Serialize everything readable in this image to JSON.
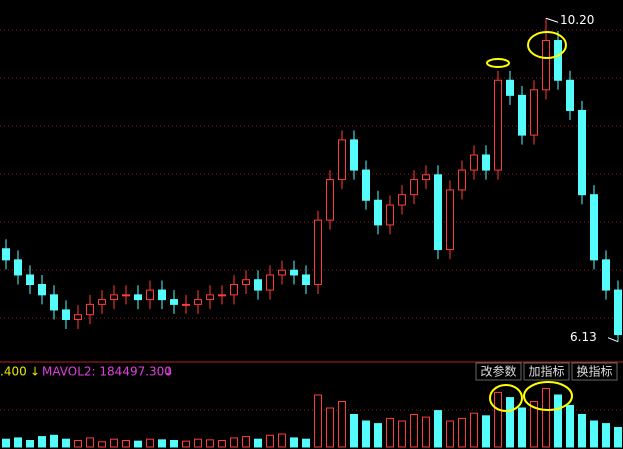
{
  "chart_data": {
    "type": "candlestick",
    "open": [
      7.3,
      7.16,
      6.97,
      6.85,
      6.72,
      6.53,
      6.41,
      6.47,
      6.6,
      6.66,
      6.72,
      6.72,
      6.66,
      6.78,
      6.66,
      6.6,
      6.6,
      6.66,
      6.72,
      6.72,
      6.85,
      6.91,
      6.78,
      6.97,
      7.03,
      6.97,
      6.85,
      7.66,
      8.17,
      8.67,
      8.29,
      7.91,
      7.6,
      7.85,
      7.98,
      8.17,
      8.23,
      7.29,
      8.04,
      8.29,
      8.48,
      8.29,
      9.42,
      9.23,
      8.73,
      9.3,
      9.92,
      9.42,
      9.04,
      7.98,
      7.16,
      6.78
    ],
    "high": [
      7.42,
      7.28,
      7.09,
      6.97,
      6.84,
      6.65,
      6.59,
      6.72,
      6.78,
      6.84,
      6.84,
      6.84,
      6.9,
      6.9,
      6.78,
      6.72,
      6.78,
      6.84,
      6.84,
      6.97,
      7.03,
      7.03,
      7.09,
      7.15,
      7.15,
      7.09,
      7.78,
      8.29,
      8.79,
      8.79,
      8.41,
      8.03,
      7.97,
      8.1,
      8.29,
      8.35,
      8.35,
      8.16,
      8.41,
      8.6,
      8.6,
      9.54,
      9.54,
      9.35,
      9.42,
      10.2,
      10.04,
      9.54,
      9.16,
      8.1,
      7.28,
      6.9
    ],
    "low": [
      7.04,
      6.85,
      6.73,
      6.6,
      6.41,
      6.29,
      6.29,
      6.35,
      6.48,
      6.54,
      6.6,
      6.54,
      6.54,
      6.54,
      6.48,
      6.48,
      6.48,
      6.54,
      6.6,
      6.6,
      6.73,
      6.66,
      6.66,
      6.85,
      6.85,
      6.73,
      6.73,
      7.54,
      8.05,
      8.17,
      7.79,
      7.48,
      7.48,
      7.73,
      7.86,
      8.05,
      7.17,
      7.17,
      7.92,
      8.17,
      8.17,
      8.17,
      9.11,
      8.61,
      8.61,
      9.18,
      9.3,
      8.92,
      7.86,
      7.04,
      6.66,
      6.13
    ],
    "close": [
      7.16,
      6.97,
      6.85,
      6.72,
      6.53,
      6.41,
      6.47,
      6.6,
      6.66,
      6.72,
      6.72,
      6.66,
      6.78,
      6.66,
      6.6,
      6.6,
      6.66,
      6.72,
      6.72,
      6.85,
      6.91,
      6.78,
      6.97,
      7.03,
      6.97,
      6.85,
      7.66,
      8.17,
      8.67,
      8.29,
      7.91,
      7.6,
      7.85,
      7.98,
      8.17,
      8.23,
      7.29,
      8.04,
      8.29,
      8.48,
      8.29,
      9.42,
      9.23,
      8.73,
      9.3,
      9.92,
      9.42,
      9.04,
      7.98,
      7.16,
      6.78,
      6.22
    ],
    "volume": [
      60000,
      70000,
      50000,
      80000,
      90000,
      60000,
      50000,
      70000,
      40000,
      60000,
      50000,
      45000,
      60000,
      55000,
      50000,
      45000,
      60000,
      55000,
      50000,
      70000,
      80000,
      60000,
      90000,
      100000,
      70000,
      60000,
      400000,
      300000,
      350000,
      250000,
      200000,
      180000,
      220000,
      200000,
      250000,
      230000,
      280000,
      200000,
      220000,
      260000,
      240000,
      420000,
      380000,
      300000,
      350000,
      450000,
      400000,
      320000,
      250000,
      200000,
      180000,
      150000
    ],
    "ylim": [
      5.9,
      10.43
    ],
    "volume_ylim": [
      0,
      500000
    ],
    "up_color": "#ff3c3c",
    "down_color": "#54fcfc",
    "extreme_labels": [
      {
        "value": 10.2,
        "label": "10.20"
      },
      {
        "value": 6.13,
        "label": "6.13"
      }
    ],
    "indicator_bar": {
      "mavol1": ".400",
      "arrow1": "↓",
      "mavol2": "MAVOL2: 184497.300",
      "arrow2": "↓"
    },
    "buttons": [
      "改参数",
      "加指标",
      "换指标"
    ]
  }
}
